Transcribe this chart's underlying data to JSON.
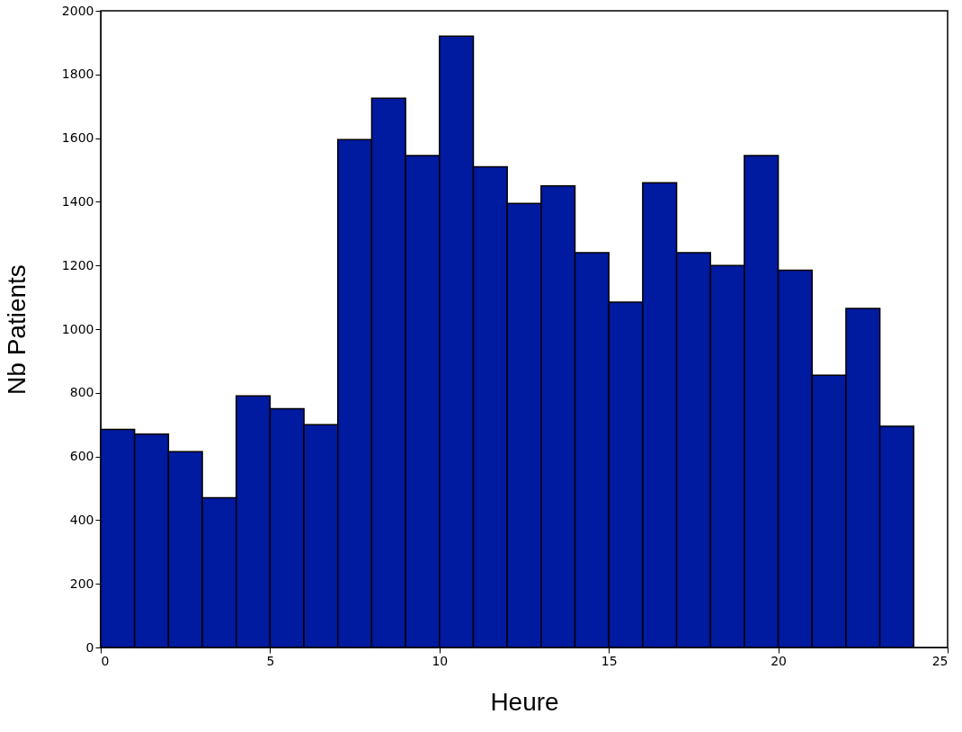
{
  "chart_data": {
    "type": "histogram",
    "xlabel": "Heure",
    "ylabel": "Nb Patients",
    "bins": [
      0,
      1,
      2,
      3,
      4,
      5,
      6,
      7,
      8,
      9,
      10,
      11,
      12,
      13,
      14,
      15,
      16,
      17,
      18,
      19,
      20,
      21,
      22,
      23,
      24
    ],
    "values": [
      685,
      670,
      615,
      470,
      790,
      750,
      700,
      1595,
      1725,
      1545,
      1920,
      1510,
      1395,
      1450,
      1240,
      1085,
      1460,
      1240,
      1200,
      1545,
      1185,
      855,
      1065,
      695
    ],
    "color": "#001aa0",
    "xlim": [
      0,
      25
    ],
    "xticks": [
      0,
      5,
      10,
      15,
      20,
      25
    ],
    "ylim": [
      0,
      2000
    ],
    "yticks": [
      0,
      200,
      400,
      600,
      800,
      1000,
      1200,
      1400,
      1600,
      1800,
      2000
    ],
    "grid": false
  }
}
